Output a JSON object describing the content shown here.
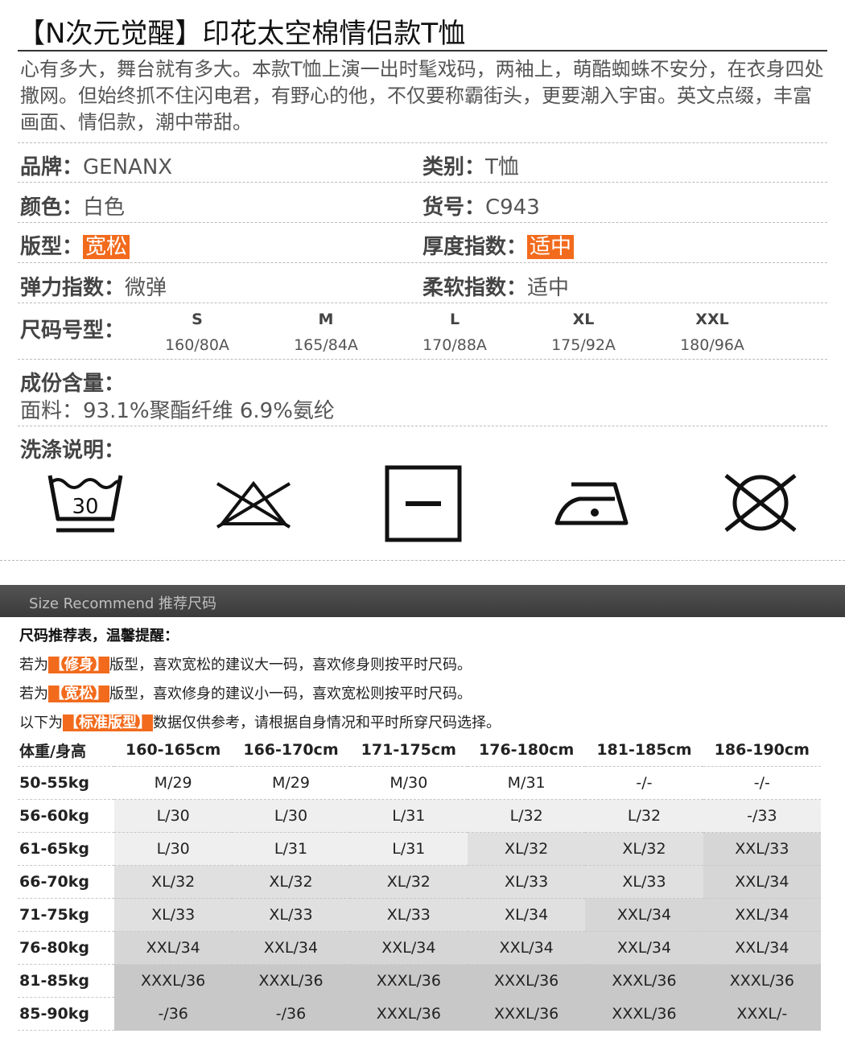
{
  "product": {
    "title": "【N次元觉醒】印花太空棉情侣款T恤",
    "description": "心有多大，舞台就有多大。本款T恤上演一出时髦戏码，两袖上，萌酷蜘蛛不安分，在衣身四处撒网。但始终抓不住闪电君，有野心的他，不仅要称霸街头，更要潮入宇宙。英文点缀，丰富画面、情侣款，潮中带甜。"
  },
  "specs": {
    "brand_key": "品牌：",
    "brand_val": "GENANX",
    "category_key": "类别：",
    "category_val": "T恤",
    "color_key": "颜色：",
    "color_val": "白色",
    "item_no_key": "货号：",
    "item_no_val": "C943",
    "fit_key": "版型：",
    "fit_val": "宽松",
    "thickness_key": "厚度指数：",
    "thickness_val": "适中",
    "elastic_key": "弹力指数：",
    "elastic_val": "微弹",
    "soft_key": "柔软指数：",
    "soft_val": "适中",
    "highlight_color": "#f26b1d"
  },
  "sizes": {
    "label": "尺码号型：",
    "items": [
      {
        "size": "S",
        "dim": "160/80A"
      },
      {
        "size": "M",
        "dim": "165/84A"
      },
      {
        "size": "L",
        "dim": "170/88A"
      },
      {
        "size": "XL",
        "dim": "175/92A"
      },
      {
        "size": "XXL",
        "dim": "180/96A"
      }
    ]
  },
  "composition": {
    "label": "成份含量：",
    "value": "面料：93.1%聚酯纤维 6.9%氨纶"
  },
  "washing": {
    "label": "洗涤说明：",
    "wash_temp": "30",
    "icons": [
      "wash-30-icon",
      "no-bleach-icon",
      "dry-flat-icon",
      "iron-low-icon",
      "no-dryclean-icon"
    ]
  },
  "recommend": {
    "banner": "Size Recommend 推荐尺码",
    "note_title": "尺码推荐表，温馨提醒：",
    "line1_pre": "若为",
    "line1_tag": "【修身】",
    "line1_post": "版型，喜欢宽松的建议大一码，喜欢修身则按平时尺码。",
    "line2_pre": "若为",
    "line2_tag": "【宽松】",
    "line2_post": "版型，喜欢修身的建议小一码，喜欢宽松则按平时尺码。",
    "line3_pre": "以下为",
    "line3_tag": "【标准版型】",
    "line3_post": "数据仅供参考，请根据自身情况和平时所穿尺码选择。",
    "table": {
      "corner": "体重/身高",
      "heights": [
        "160-165cm",
        "166-170cm",
        "171-175cm",
        "176-180cm",
        "181-185cm",
        "186-190cm"
      ],
      "rows": [
        {
          "weight": "50-55kg",
          "cells": [
            "M/29",
            "M/29",
            "M/30",
            "M/31",
            "-/-",
            "-/-"
          ],
          "shade": [
            0,
            0,
            0,
            0,
            0,
            0
          ]
        },
        {
          "weight": "56-60kg",
          "cells": [
            "L/30",
            "L/30",
            "L/31",
            "L/32",
            "L/32",
            "-/33"
          ],
          "shade": [
            1,
            1,
            1,
            1,
            1,
            1
          ]
        },
        {
          "weight": "61-65kg",
          "cells": [
            "L/30",
            "L/31",
            "L/31",
            "XL/32",
            "XL/32",
            "XXL/33"
          ],
          "shade": [
            1,
            1,
            1,
            2,
            2,
            3
          ]
        },
        {
          "weight": "66-70kg",
          "cells": [
            "XL/32",
            "XL/32",
            "XL/32",
            "XL/33",
            "XL/33",
            "XXL/34"
          ],
          "shade": [
            2,
            2,
            2,
            2,
            2,
            3
          ]
        },
        {
          "weight": "71-75kg",
          "cells": [
            "XL/33",
            "XL/33",
            "XL/33",
            "XL/34",
            "XXL/34",
            "XXL/34"
          ],
          "shade": [
            2,
            2,
            2,
            2,
            3,
            3
          ]
        },
        {
          "weight": "76-80kg",
          "cells": [
            "XXL/34",
            "XXL/34",
            "XXL/34",
            "XXL/34",
            "XXL/34",
            "XXL/34"
          ],
          "shade": [
            3,
            3,
            3,
            3,
            3,
            3
          ]
        },
        {
          "weight": "81-85kg",
          "cells": [
            "XXXL/36",
            "XXXL/36",
            "XXXL/36",
            "XXXL/36",
            "XXXL/36",
            "XXXL/36"
          ],
          "shade": [
            4,
            4,
            4,
            4,
            4,
            4
          ]
        },
        {
          "weight": "85-90kg",
          "cells": [
            "-/36",
            "-/36",
            "XXXL/36",
            "XXXL/36",
            "XXXL/36",
            "XXXL/-"
          ],
          "shade": [
            4,
            4,
            4,
            4,
            4,
            4
          ]
        }
      ]
    }
  }
}
